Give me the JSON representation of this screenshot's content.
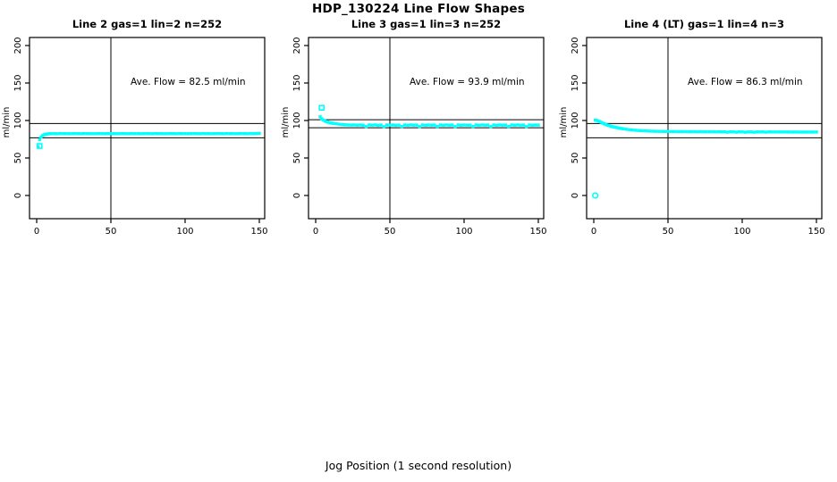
{
  "figure": {
    "title": "HDP_130224  Line Flow Shapes",
    "x_axis_outer_label": "Jog Position (1 second resolution)",
    "background": "#ffffff",
    "marker_color": "#00ffff",
    "axis_color": "#000000"
  },
  "chart_data": [
    {
      "type": "scatter",
      "title": "Line 2 gas=1 lin=2 n=252",
      "annotation": "Ave. Flow =  82.5  ml/min",
      "ave_flow_ml_min": 82.5,
      "ylabel": "ml/min",
      "x_ticks": [
        0,
        50,
        100,
        150
      ],
      "y_ticks": [
        0,
        50,
        100,
        150,
        200
      ],
      "xlim": [
        0,
        150
      ],
      "ylim": [
        0,
        200
      ],
      "ref_lines_y": [
        96,
        77
      ],
      "vline_x": 50,
      "outliers": [
        {
          "x": 2,
          "y": 66,
          "marker": "square"
        }
      ],
      "points": [
        [
          1,
          65
        ],
        [
          2,
          74.5
        ],
        [
          3,
          78
        ],
        [
          4,
          80
        ],
        [
          5,
          81
        ],
        [
          6,
          81.6
        ],
        [
          7,
          82
        ],
        [
          8,
          82.2
        ],
        [
          9,
          82.3
        ],
        [
          10,
          82.4
        ],
        [
          12,
          82.5
        ],
        [
          14,
          82.4
        ],
        [
          16,
          82.6
        ],
        [
          18,
          82.5
        ],
        [
          20,
          82.5
        ],
        [
          22,
          82.4
        ],
        [
          24,
          82.5
        ],
        [
          26,
          82.6
        ],
        [
          28,
          82.5
        ],
        [
          30,
          82.4
        ],
        [
          32,
          82.6
        ],
        [
          34,
          82.5
        ],
        [
          36,
          82.5
        ],
        [
          38,
          82.4
        ],
        [
          40,
          82.5
        ],
        [
          42,
          82.6
        ],
        [
          44,
          82.5
        ],
        [
          46,
          82.4
        ],
        [
          48,
          82.6
        ],
        [
          50,
          82.5
        ],
        [
          52,
          82.5
        ],
        [
          54,
          82.4
        ],
        [
          56,
          82.5
        ],
        [
          58,
          82.6
        ],
        [
          60,
          82.5
        ],
        [
          62,
          82.4
        ],
        [
          64,
          82.6
        ],
        [
          66,
          82.5
        ],
        [
          68,
          82.5
        ],
        [
          70,
          82.4
        ],
        [
          72,
          82.5
        ],
        [
          74,
          82.6
        ],
        [
          76,
          82.5
        ],
        [
          78,
          82.4
        ],
        [
          80,
          82.6
        ],
        [
          82,
          82.5
        ],
        [
          84,
          82.5
        ],
        [
          86,
          82.4
        ],
        [
          88,
          82.5
        ],
        [
          90,
          82.6
        ],
        [
          92,
          82.5
        ],
        [
          94,
          82.4
        ],
        [
          96,
          82.6
        ],
        [
          98,
          82.5
        ],
        [
          100,
          82.5
        ],
        [
          102,
          82.4
        ],
        [
          104,
          82.5
        ],
        [
          106,
          82.6
        ],
        [
          108,
          82.5
        ],
        [
          110,
          82.4
        ],
        [
          112,
          82.6
        ],
        [
          114,
          82.5
        ],
        [
          116,
          82.5
        ],
        [
          118,
          82.4
        ],
        [
          120,
          82.5
        ],
        [
          122,
          82.6
        ],
        [
          124,
          82.5
        ],
        [
          126,
          82.4
        ],
        [
          128,
          82.6
        ],
        [
          130,
          82.5
        ],
        [
          132,
          82.5
        ],
        [
          134,
          82.4
        ],
        [
          136,
          82.5
        ],
        [
          138,
          82.6
        ],
        [
          140,
          82.5
        ],
        [
          142,
          82.4
        ],
        [
          144,
          82.6
        ],
        [
          146,
          82.5
        ],
        [
          148,
          82.7
        ],
        [
          150,
          82.9
        ]
      ]
    },
    {
      "type": "scatter",
      "title": "Line 3 gas=1 lin=3 n=252",
      "annotation": "Ave. Flow =  93.9  ml/min",
      "ave_flow_ml_min": 93.9,
      "ylabel": "ml/min",
      "x_ticks": [
        0,
        50,
        100,
        150
      ],
      "y_ticks": [
        0,
        50,
        100,
        150,
        200
      ],
      "xlim": [
        0,
        150
      ],
      "ylim": [
        0,
        200
      ],
      "ref_lines_y": [
        101,
        90.3
      ],
      "vline_x": 50,
      "outliers": [
        {
          "x": 4,
          "y": 117,
          "marker": "square"
        }
      ],
      "points": [
        [
          3,
          105
        ],
        [
          4,
          102.5
        ],
        [
          5,
          100.8
        ],
        [
          6,
          99.6
        ],
        [
          7,
          98.7
        ],
        [
          8,
          98
        ],
        [
          9,
          97.4
        ],
        [
          10,
          96.9
        ],
        [
          11,
          96.5
        ],
        [
          12,
          96.1
        ],
        [
          14,
          95.5
        ],
        [
          16,
          95
        ],
        [
          18,
          94.6
        ],
        [
          20,
          94.3
        ],
        [
          22,
          94.1
        ],
        [
          24,
          93.9
        ],
        [
          26,
          94.1
        ],
        [
          28,
          93.8
        ],
        [
          30,
          94
        ],
        [
          32,
          93.7
        ],
        [
          34,
          91.9
        ],
        [
          36,
          94
        ],
        [
          38,
          93.8
        ],
        [
          40,
          94.1
        ],
        [
          42,
          93.6
        ],
        [
          44,
          93.9
        ],
        [
          46,
          91.8
        ],
        [
          48,
          94
        ],
        [
          50,
          93.8
        ],
        [
          52,
          94
        ],
        [
          54,
          93.6
        ],
        [
          56,
          93.9
        ],
        [
          58,
          92
        ],
        [
          60,
          94
        ],
        [
          62,
          93.7
        ],
        [
          64,
          94.1
        ],
        [
          66,
          93.8
        ],
        [
          68,
          93.9
        ],
        [
          70,
          91.9
        ],
        [
          72,
          94
        ],
        [
          74,
          93.7
        ],
        [
          76,
          94
        ],
        [
          78,
          93.8
        ],
        [
          80,
          93.9
        ],
        [
          82,
          92
        ],
        [
          84,
          94
        ],
        [
          86,
          93.7
        ],
        [
          88,
          94.1
        ],
        [
          90,
          93.8
        ],
        [
          92,
          93.9
        ],
        [
          94,
          91.9
        ],
        [
          96,
          94
        ],
        [
          98,
          93.7
        ],
        [
          100,
          94
        ],
        [
          102,
          93.8
        ],
        [
          104,
          93.9
        ],
        [
          106,
          92
        ],
        [
          108,
          94
        ],
        [
          110,
          93.7
        ],
        [
          112,
          94.1
        ],
        [
          114,
          93.8
        ],
        [
          116,
          93.9
        ],
        [
          118,
          91.9
        ],
        [
          120,
          94
        ],
        [
          122,
          93.7
        ],
        [
          124,
          94
        ],
        [
          126,
          93.8
        ],
        [
          128,
          93.9
        ],
        [
          130,
          92
        ],
        [
          132,
          94
        ],
        [
          134,
          93.7
        ],
        [
          136,
          94.1
        ],
        [
          138,
          93.8
        ],
        [
          140,
          93.9
        ],
        [
          142,
          91.9
        ],
        [
          144,
          94
        ],
        [
          146,
          93.7
        ],
        [
          148,
          94
        ],
        [
          150,
          93.9
        ]
      ]
    },
    {
      "type": "scatter",
      "title": "Line 4 (LT) gas=1 lin=4 n=3",
      "annotation": "Ave. Flow =  86.3  ml/min",
      "ave_flow_ml_min": 86.3,
      "ylabel": "ml/min",
      "x_ticks": [
        0,
        50,
        100,
        150
      ],
      "y_ticks": [
        0,
        50,
        100,
        150,
        200
      ],
      "xlim": [
        0,
        150
      ],
      "ylim": [
        0,
        200
      ],
      "ref_lines_y": [
        96,
        77
      ],
      "vline_x": 50,
      "outliers": [
        {
          "x": 1,
          "y": 0,
          "marker": "circle"
        }
      ],
      "points": [
        [
          1,
          100.5
        ],
        [
          2,
          100.1
        ],
        [
          3,
          99.4
        ],
        [
          4,
          98.5
        ],
        [
          5,
          97.5
        ],
        [
          6,
          96.5
        ],
        [
          7,
          95.6
        ],
        [
          8,
          94.8
        ],
        [
          9,
          94
        ],
        [
          10,
          93.3
        ],
        [
          11,
          92.7
        ],
        [
          12,
          92.1
        ],
        [
          13,
          91.6
        ],
        [
          14,
          91.1
        ],
        [
          15,
          90.7
        ],
        [
          16,
          90.3
        ],
        [
          17,
          89.9
        ],
        [
          18,
          89.5
        ],
        [
          19,
          89.2
        ],
        [
          20,
          88.9
        ],
        [
          22,
          88.3
        ],
        [
          24,
          87.8
        ],
        [
          26,
          87.4
        ],
        [
          28,
          87
        ],
        [
          30,
          86.7
        ],
        [
          32,
          86.4
        ],
        [
          34,
          86.2
        ],
        [
          36,
          86
        ],
        [
          38,
          85.8
        ],
        [
          40,
          85.7
        ],
        [
          42,
          85.6
        ],
        [
          44,
          85.5
        ],
        [
          46,
          85.5
        ],
        [
          48,
          85.4
        ],
        [
          50,
          85.4
        ],
        [
          52,
          85.3
        ],
        [
          54,
          85.3
        ],
        [
          56,
          85.3
        ],
        [
          58,
          85.2
        ],
        [
          60,
          85.2
        ],
        [
          62,
          85.2
        ],
        [
          64,
          85.1
        ],
        [
          66,
          85.1
        ],
        [
          68,
          85.1
        ],
        [
          70,
          85
        ],
        [
          72,
          85.1
        ],
        [
          74,
          85
        ],
        [
          76,
          85
        ],
        [
          78,
          85
        ],
        [
          80,
          85
        ],
        [
          82,
          84.9
        ],
        [
          84,
          85
        ],
        [
          86,
          84.9
        ],
        [
          88,
          84.9
        ],
        [
          90,
          84.4
        ],
        [
          92,
          84.9
        ],
        [
          94,
          84.9
        ],
        [
          96,
          84.4
        ],
        [
          98,
          84.9
        ],
        [
          100,
          84.8
        ],
        [
          102,
          84.4
        ],
        [
          104,
          84.8
        ],
        [
          106,
          84.8
        ],
        [
          108,
          84.4
        ],
        [
          110,
          84.8
        ],
        [
          112,
          84.8
        ],
        [
          114,
          84.8
        ],
        [
          116,
          84.4
        ],
        [
          118,
          84.8
        ],
        [
          120,
          84.7
        ],
        [
          122,
          84.7
        ],
        [
          124,
          84.7
        ],
        [
          126,
          84.7
        ],
        [
          128,
          84.7
        ],
        [
          130,
          84.7
        ],
        [
          132,
          84.7
        ],
        [
          134,
          84.6
        ],
        [
          136,
          84.7
        ],
        [
          138,
          84.6
        ],
        [
          140,
          84.6
        ],
        [
          142,
          84.6
        ],
        [
          144,
          84.6
        ],
        [
          146,
          84.6
        ],
        [
          148,
          84.6
        ],
        [
          150,
          84.7
        ]
      ]
    }
  ]
}
